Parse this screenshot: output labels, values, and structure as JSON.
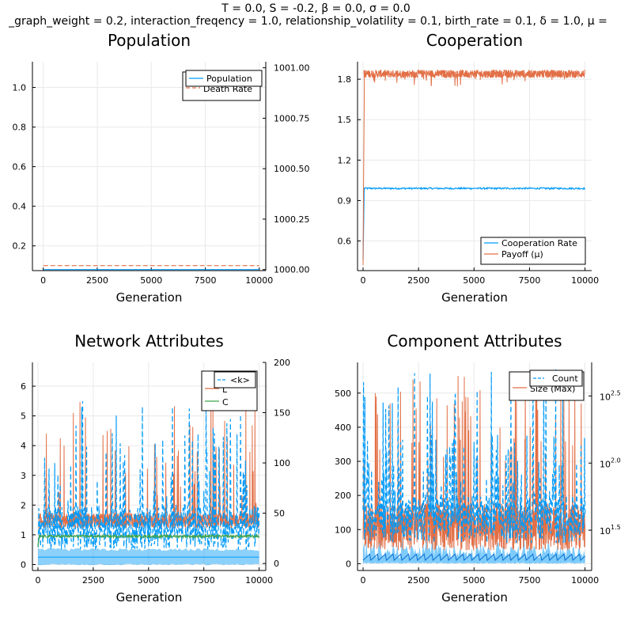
{
  "figure_title": {
    "line1": "T = 0.0, S = -0.2, β = 0.0, σ = 0.0",
    "line2": "_graph_weight = 0.2, interaction_freqency = 1.0, relationship_volatility = 0.1, birth_rate = 0.1, δ = 1.0, μ ="
  },
  "colors": {
    "blue": "#009af9",
    "orange": "#e26f46",
    "green": "#3ea44e",
    "band": "#009af9",
    "axis": "#000000",
    "grid": "#e9e9e9"
  },
  "chart_data": [
    {
      "type": "line",
      "title": "Population",
      "xlabel": "Generation",
      "ylabel": "",
      "xlim": [
        -500,
        10300
      ],
      "ylim": [
        0.075,
        1.13
      ],
      "xticks": [
        "0",
        "2500",
        "5000",
        "7500",
        "10000"
      ],
      "yticks": [
        "0.2",
        "0.4",
        "0.6",
        "0.8",
        "1.0"
      ],
      "y2lim": [
        999.995,
        1001.03
      ],
      "y2ticks": [
        "1000.00",
        "1000.25",
        "1000.50",
        "1000.75",
        "1001.00"
      ],
      "grid": true,
      "legend_position": "top-right",
      "series": [
        {
          "name": "Population",
          "axis": "right",
          "style": "solid",
          "x": [
            0,
            10000
          ],
          "values": [
            1000.0,
            1000.0
          ]
        },
        {
          "name": "Death Rate",
          "axis": "left",
          "style": "dashed",
          "x": [
            0,
            10000
          ],
          "values": [
            0.1,
            0.1
          ]
        }
      ]
    },
    {
      "type": "line",
      "title": "Cooperation",
      "xlabel": "Generation",
      "ylabel": "",
      "xlim": [
        -250,
        10300
      ],
      "ylim": [
        0.38,
        1.93
      ],
      "xticks": [
        "0",
        "2500",
        "5000",
        "7500",
        "10000"
      ],
      "yticks": [
        "0.6",
        "0.9",
        "1.2",
        "1.5",
        "1.8"
      ],
      "grid": true,
      "legend_position": "bottom-right",
      "series": [
        {
          "name": "Cooperation Rate",
          "x": [
            0,
            50,
            100,
            2500,
            5000,
            7500,
            10000
          ],
          "values": [
            0.46,
            0.97,
            0.99,
            0.99,
            0.99,
            0.99,
            0.99
          ]
        },
        {
          "name": "Payoff (μ)",
          "x": [
            0,
            20,
            60,
            100,
            2500,
            5000,
            7500,
            10000
          ],
          "values": [
            0.42,
            1.0,
            1.79,
            1.84,
            1.84,
            1.84,
            1.84,
            1.84
          ]
        }
      ]
    },
    {
      "type": "line",
      "title": "Network Attributes",
      "xlabel": "Generation",
      "ylabel": "",
      "xlim": [
        -250,
        10300
      ],
      "ylim": [
        -0.2,
        6.8
      ],
      "xticks": [
        "0",
        "2500",
        "5000",
        "7500",
        "10000"
      ],
      "yticks": [
        "0",
        "1",
        "2",
        "3",
        "4",
        "5",
        "6"
      ],
      "y2lim": [
        -7,
        200
      ],
      "y2ticks": [
        "0",
        "50",
        "100",
        "150",
        "200"
      ],
      "grid": true,
      "legend_position": "top-right",
      "series": [
        {
          "name": "<k>",
          "axis": "left",
          "style": "dashed",
          "band": [
            0.0,
            0.5
          ]
        },
        {
          "name": "L",
          "axis": "right",
          "style": "solid"
        },
        {
          "name": "C",
          "axis": "left",
          "style": "solid",
          "approx_level": 0.95
        }
      ]
    },
    {
      "type": "line",
      "title": "Component Attributes",
      "xlabel": "Generation",
      "ylabel": "",
      "xlim": [
        -250,
        10300
      ],
      "ylim": [
        -20,
        590
      ],
      "xticks": [
        "0",
        "2500",
        "5000",
        "7500",
        "10000"
      ],
      "yticks": [
        "0",
        "100",
        "200",
        "300",
        "400",
        "500"
      ],
      "y2scale": "log10",
      "y2lim_log10": [
        1.2,
        2.75
      ],
      "y2ticks": [
        {
          "base": "10",
          "exp": "1.5"
        },
        {
          "base": "10",
          "exp": "2.0"
        },
        {
          "base": "10",
          "exp": "2.5"
        }
      ],
      "grid": true,
      "legend_position": "top-right",
      "series": [
        {
          "name": "Count",
          "axis": "left",
          "style": "dashed",
          "band": [
            0,
            75
          ]
        },
        {
          "name": "Size (Max)",
          "axis": "right",
          "style": "solid"
        }
      ]
    }
  ]
}
